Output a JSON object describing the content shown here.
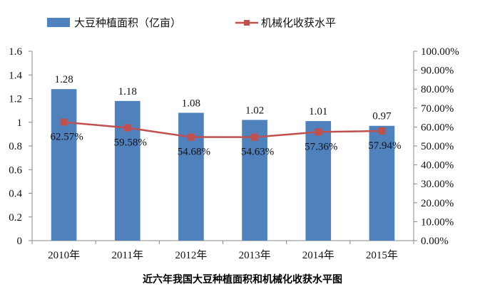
{
  "chart_data": {
    "type": "bar",
    "categories": [
      "2010年",
      "2011年",
      "2012年",
      "2013年",
      "2014年",
      "2015年"
    ],
    "series": [
      {
        "name": "大豆种植面积（亿亩）",
        "type": "bar",
        "axis": "left",
        "color": "#4f81bd",
        "values": [
          1.28,
          1.18,
          1.08,
          1.02,
          1.01,
          0.97
        ],
        "labels": [
          "1.28",
          "1.18",
          "1.08",
          "1.02",
          "1.01",
          "0.97"
        ]
      },
      {
        "name": "机械化收获水平",
        "type": "line",
        "axis": "right",
        "color": "#c0504d",
        "values": [
          62.57,
          59.58,
          54.68,
          54.63,
          57.36,
          57.94
        ],
        "labels": [
          "62.57%",
          "59.58%",
          "54.68%",
          "54.63%",
          "57.36%",
          "57.94%"
        ]
      }
    ],
    "ylim": [
      0,
      1.6
    ],
    "yticks": [
      "0",
      "0.2",
      "0.4",
      "0.6",
      "0.8",
      "1",
      "1.2",
      "1.4",
      "1.6"
    ],
    "y2lim": [
      0,
      100
    ],
    "y2ticks": [
      "0.00%",
      "10.00%",
      "20.00%",
      "30.00%",
      "40.00%",
      "50.00%",
      "60.00%",
      "70.00%",
      "80.00%",
      "90.00%",
      "100.00%"
    ],
    "title": "近六年我国大豆种植面积和机械化收获水平图",
    "legend_position": "top",
    "grid": false
  }
}
